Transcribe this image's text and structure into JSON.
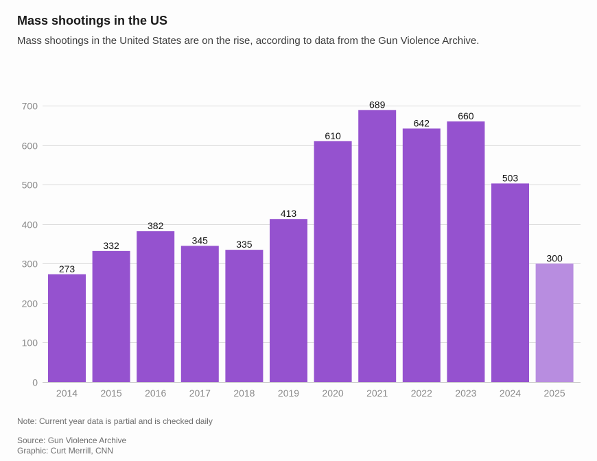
{
  "header": {
    "title": "Mass shootings in the US",
    "subtitle": "Mass shootings in the United States are on the rise, according to data from the Gun Violence Archive."
  },
  "footer": {
    "note": "Note: Current year data is partial and is checked daily",
    "source": "Source: Gun Violence Archive",
    "credit": "Graphic: Curt Merrill, CNN"
  },
  "colors": {
    "bar": "#9552cf",
    "bar_partial": "#b88de0",
    "grid": "#d9d9d9",
    "axis": "#cccccc"
  },
  "chart_data": {
    "type": "bar",
    "title": "Mass shootings in the US",
    "xlabel": "",
    "ylabel": "",
    "categories": [
      "2014",
      "2015",
      "2016",
      "2017",
      "2018",
      "2019",
      "2020",
      "2021",
      "2022",
      "2023",
      "2024",
      "2025"
    ],
    "values": [
      273,
      332,
      382,
      345,
      335,
      413,
      610,
      689,
      642,
      660,
      503,
      300
    ],
    "partial": [
      false,
      false,
      false,
      false,
      false,
      false,
      false,
      false,
      false,
      false,
      false,
      true
    ],
    "ylim": [
      0,
      700
    ],
    "yticks": [
      0,
      100,
      200,
      300,
      400,
      500,
      600,
      700
    ],
    "grid": true,
    "data_labels": true,
    "legend": "none"
  }
}
